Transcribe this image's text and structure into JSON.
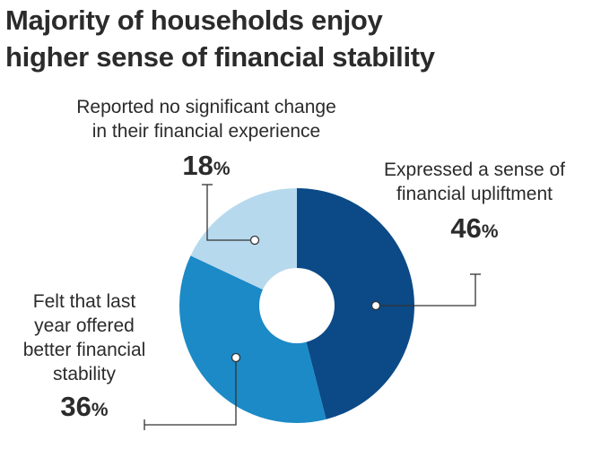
{
  "title_lines": [
    "Majority of households enjoy",
    "higher sense of financial stability"
  ],
  "colors": {
    "uplift": "#0b4a87",
    "last_year": "#1b8ac6",
    "no_change": "#b7d9ee",
    "hole": "#ffffff",
    "leader": "#333333"
  },
  "chart_data": {
    "type": "pie",
    "donut": true,
    "title": "Majority of households enjoy higher sense of financial stability",
    "slices": [
      {
        "label_lines": [
          "Expressed a sense of",
          "financial upliftment"
        ],
        "value": 46,
        "pct_symbol": "%",
        "color": "#0b4a87"
      },
      {
        "label_lines": [
          "Felt that last",
          "year offered",
          "better financial",
          "stability"
        ],
        "value": 36,
        "pct_symbol": "%",
        "color": "#1b8ac6"
      },
      {
        "label_lines": [
          "Reported no significant change",
          "in their financial experience"
        ],
        "value": 18,
        "pct_symbol": "%",
        "color": "#b7d9ee"
      }
    ]
  }
}
